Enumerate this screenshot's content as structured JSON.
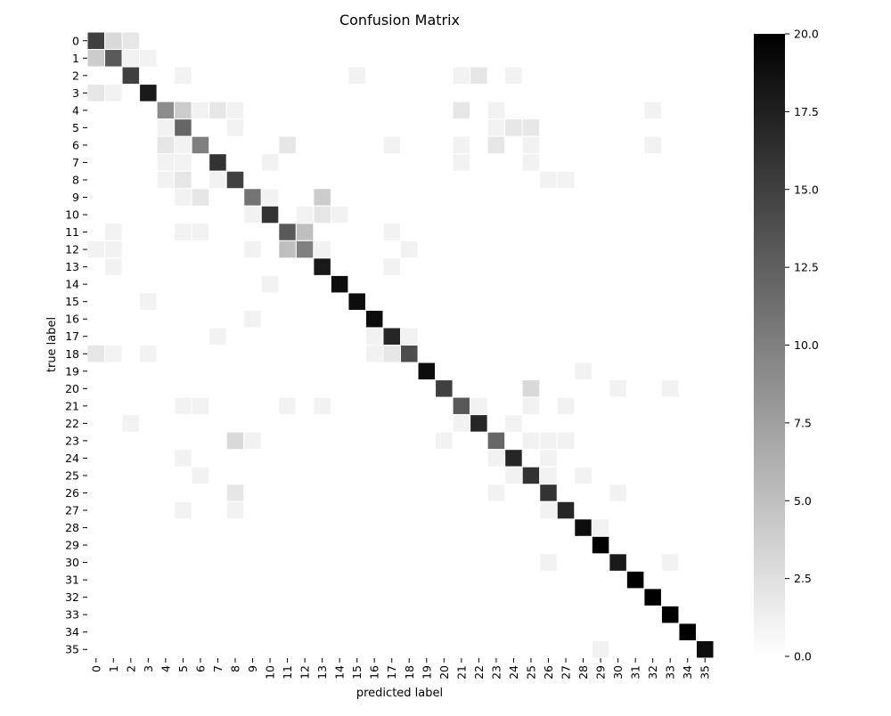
{
  "chart_data": {
    "type": "heatmap",
    "title": "Confusion Matrix",
    "xlabel": "predicted label",
    "ylabel": "true label",
    "x_categories": [
      "0",
      "1",
      "2",
      "3",
      "4",
      "5",
      "6",
      "7",
      "8",
      "9",
      "10",
      "11",
      "12",
      "13",
      "14",
      "15",
      "16",
      "17",
      "18",
      "19",
      "20",
      "21",
      "22",
      "23",
      "24",
      "25",
      "26",
      "27",
      "28",
      "29",
      "30",
      "31",
      "32",
      "33",
      "34",
      "35"
    ],
    "y_categories": [
      "0",
      "1",
      "2",
      "3",
      "4",
      "5",
      "6",
      "7",
      "8",
      "9",
      "10",
      "11",
      "12",
      "13",
      "14",
      "15",
      "16",
      "17",
      "18",
      "19",
      "20",
      "21",
      "22",
      "23",
      "24",
      "25",
      "26",
      "27",
      "28",
      "29",
      "30",
      "31",
      "32",
      "33",
      "34",
      "35"
    ],
    "value_range": [
      0,
      20
    ],
    "colormap": "gray_r",
    "grid_color": "#ffffff",
    "colorbar_ticks": [
      "0.0",
      "2.5",
      "5.0",
      "7.5",
      "10.0",
      "12.5",
      "15.0",
      "17.5",
      "20.0"
    ],
    "colorbar_tick_values": [
      0,
      2.5,
      5,
      7.5,
      10,
      12.5,
      15,
      17.5,
      20
    ],
    "cells": [
      [
        0,
        0,
        15
      ],
      [
        0,
        1,
        3
      ],
      [
        0,
        2,
        2
      ],
      [
        1,
        0,
        4
      ],
      [
        1,
        1,
        13
      ],
      [
        1,
        2,
        1
      ],
      [
        1,
        3,
        1
      ],
      [
        2,
        2,
        15
      ],
      [
        2,
        5,
        1
      ],
      [
        2,
        15,
        1
      ],
      [
        2,
        21,
        1
      ],
      [
        2,
        22,
        2
      ],
      [
        2,
        24,
        1
      ],
      [
        3,
        0,
        2
      ],
      [
        3,
        1,
        1
      ],
      [
        3,
        3,
        18
      ],
      [
        4,
        4,
        9
      ],
      [
        4,
        5,
        4
      ],
      [
        4,
        6,
        1
      ],
      [
        4,
        7,
        2
      ],
      [
        4,
        8,
        1
      ],
      [
        4,
        21,
        2
      ],
      [
        4,
        23,
        1
      ],
      [
        4,
        32,
        1
      ],
      [
        5,
        4,
        1
      ],
      [
        5,
        5,
        12
      ],
      [
        5,
        8,
        1
      ],
      [
        5,
        23,
        1
      ],
      [
        5,
        24,
        2
      ],
      [
        5,
        25,
        2
      ],
      [
        6,
        4,
        2
      ],
      [
        6,
        5,
        1
      ],
      [
        6,
        6,
        10
      ],
      [
        6,
        11,
        2
      ],
      [
        6,
        17,
        1
      ],
      [
        6,
        21,
        1
      ],
      [
        6,
        23,
        2
      ],
      [
        6,
        25,
        1
      ],
      [
        6,
        32,
        1
      ],
      [
        7,
        4,
        1
      ],
      [
        7,
        5,
        1
      ],
      [
        7,
        7,
        16
      ],
      [
        7,
        10,
        1
      ],
      [
        7,
        21,
        1
      ],
      [
        7,
        25,
        1
      ],
      [
        8,
        4,
        1
      ],
      [
        8,
        5,
        2
      ],
      [
        8,
        7,
        1
      ],
      [
        8,
        8,
        15
      ],
      [
        8,
        26,
        1
      ],
      [
        8,
        27,
        1
      ],
      [
        9,
        5,
        1
      ],
      [
        9,
        6,
        2
      ],
      [
        9,
        9,
        11
      ],
      [
        9,
        10,
        1
      ],
      [
        9,
        13,
        4
      ],
      [
        10,
        9,
        1
      ],
      [
        10,
        10,
        16
      ],
      [
        10,
        12,
        1
      ],
      [
        10,
        13,
        2
      ],
      [
        10,
        14,
        1
      ],
      [
        11,
        1,
        1
      ],
      [
        11,
        5,
        1
      ],
      [
        11,
        6,
        1
      ],
      [
        11,
        11,
        13
      ],
      [
        11,
        12,
        5
      ],
      [
        11,
        17,
        1
      ],
      [
        12,
        0,
        1
      ],
      [
        12,
        1,
        1
      ],
      [
        12,
        9,
        1
      ],
      [
        12,
        11,
        5
      ],
      [
        12,
        12,
        10
      ],
      [
        12,
        13,
        1
      ],
      [
        12,
        18,
        1
      ],
      [
        13,
        1,
        1
      ],
      [
        13,
        13,
        18
      ],
      [
        13,
        17,
        1
      ],
      [
        14,
        10,
        1
      ],
      [
        14,
        14,
        19
      ],
      [
        15,
        3,
        1
      ],
      [
        15,
        15,
        19
      ],
      [
        16,
        9,
        1
      ],
      [
        16,
        16,
        19
      ],
      [
        17,
        7,
        1
      ],
      [
        17,
        16,
        1
      ],
      [
        17,
        17,
        17
      ],
      [
        17,
        18,
        1
      ],
      [
        18,
        0,
        2
      ],
      [
        18,
        1,
        1
      ],
      [
        18,
        3,
        1
      ],
      [
        18,
        16,
        1
      ],
      [
        18,
        17,
        2
      ],
      [
        18,
        18,
        14
      ],
      [
        19,
        19,
        19
      ],
      [
        19,
        28,
        1
      ],
      [
        20,
        20,
        15
      ],
      [
        20,
        25,
        3
      ],
      [
        20,
        30,
        1
      ],
      [
        20,
        33,
        1
      ],
      [
        21,
        5,
        1
      ],
      [
        21,
        6,
        1
      ],
      [
        21,
        11,
        1
      ],
      [
        21,
        13,
        1
      ],
      [
        21,
        21,
        13
      ],
      [
        21,
        22,
        1
      ],
      [
        21,
        25,
        1
      ],
      [
        21,
        27,
        1
      ],
      [
        22,
        2,
        1
      ],
      [
        22,
        21,
        1
      ],
      [
        22,
        22,
        17
      ],
      [
        22,
        24,
        1
      ],
      [
        23,
        8,
        3
      ],
      [
        23,
        9,
        1
      ],
      [
        23,
        20,
        1
      ],
      [
        23,
        23,
        12
      ],
      [
        23,
        25,
        1
      ],
      [
        23,
        26,
        1
      ],
      [
        23,
        27,
        1
      ],
      [
        24,
        5,
        1
      ],
      [
        24,
        23,
        1
      ],
      [
        24,
        24,
        17
      ],
      [
        24,
        26,
        1
      ],
      [
        25,
        6,
        1
      ],
      [
        25,
        24,
        1
      ],
      [
        25,
        25,
        16
      ],
      [
        25,
        26,
        1
      ],
      [
        25,
        28,
        1
      ],
      [
        26,
        8,
        2
      ],
      [
        26,
        23,
        1
      ],
      [
        26,
        26,
        16
      ],
      [
        26,
        30,
        1
      ],
      [
        27,
        5,
        1
      ],
      [
        27,
        8,
        1
      ],
      [
        27,
        26,
        1
      ],
      [
        27,
        27,
        17
      ],
      [
        28,
        28,
        19
      ],
      [
        28,
        29,
        1
      ],
      [
        29,
        29,
        20
      ],
      [
        30,
        26,
        1
      ],
      [
        30,
        30,
        18
      ],
      [
        30,
        33,
        1
      ],
      [
        31,
        31,
        20
      ],
      [
        32,
        32,
        20
      ],
      [
        33,
        33,
        20
      ],
      [
        34,
        34,
        20
      ],
      [
        35,
        29,
        1
      ],
      [
        35,
        35,
        19
      ]
    ]
  }
}
